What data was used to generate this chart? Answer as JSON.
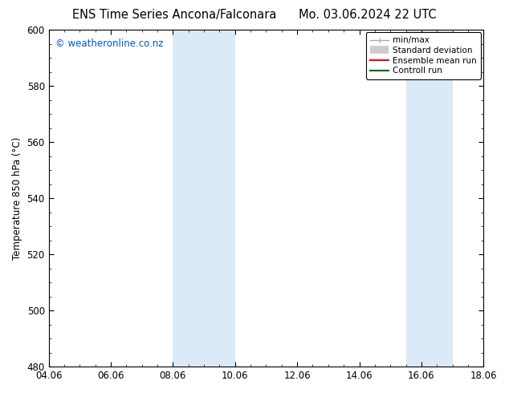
{
  "title_left": "ENS Time Series Ancona/Falconara",
  "title_right": "Mo. 03.06.2024 22 UTC",
  "ylabel": "Temperature 850 hPa (°C)",
  "xlabel_ticks": [
    "04.06",
    "06.06",
    "08.06",
    "10.06",
    "12.06",
    "14.06",
    "16.06",
    "18.06"
  ],
  "xtick_positions": [
    0,
    2,
    4,
    6,
    8,
    10,
    12,
    14
  ],
  "xlim": [
    0,
    14
  ],
  "ylim": [
    480,
    600
  ],
  "yticks": [
    480,
    500,
    520,
    540,
    560,
    580,
    600
  ],
  "background_color": "#ffffff",
  "plot_bg_color": "#ffffff",
  "shaded_regions": [
    {
      "x_start": 4,
      "x_end": 6,
      "color": "#daeaf7"
    },
    {
      "x_start": 11.5,
      "x_end": 13,
      "color": "#daeaf7"
    }
  ],
  "watermark_text": "© weatheronline.co.nz",
  "watermark_color": "#0055cc",
  "legend_labels": [
    "min/max",
    "Standard deviation",
    "Ensemble mean run",
    "Controll run"
  ],
  "legend_colors": [
    "#aaaaaa",
    "#cccccc",
    "#ff0000",
    "#006600"
  ],
  "border_color": "#000000",
  "tick_label_fontsize": 8.5,
  "title_fontsize": 10.5,
  "ylabel_fontsize": 8.5,
  "watermark_fontsize": 8.5
}
